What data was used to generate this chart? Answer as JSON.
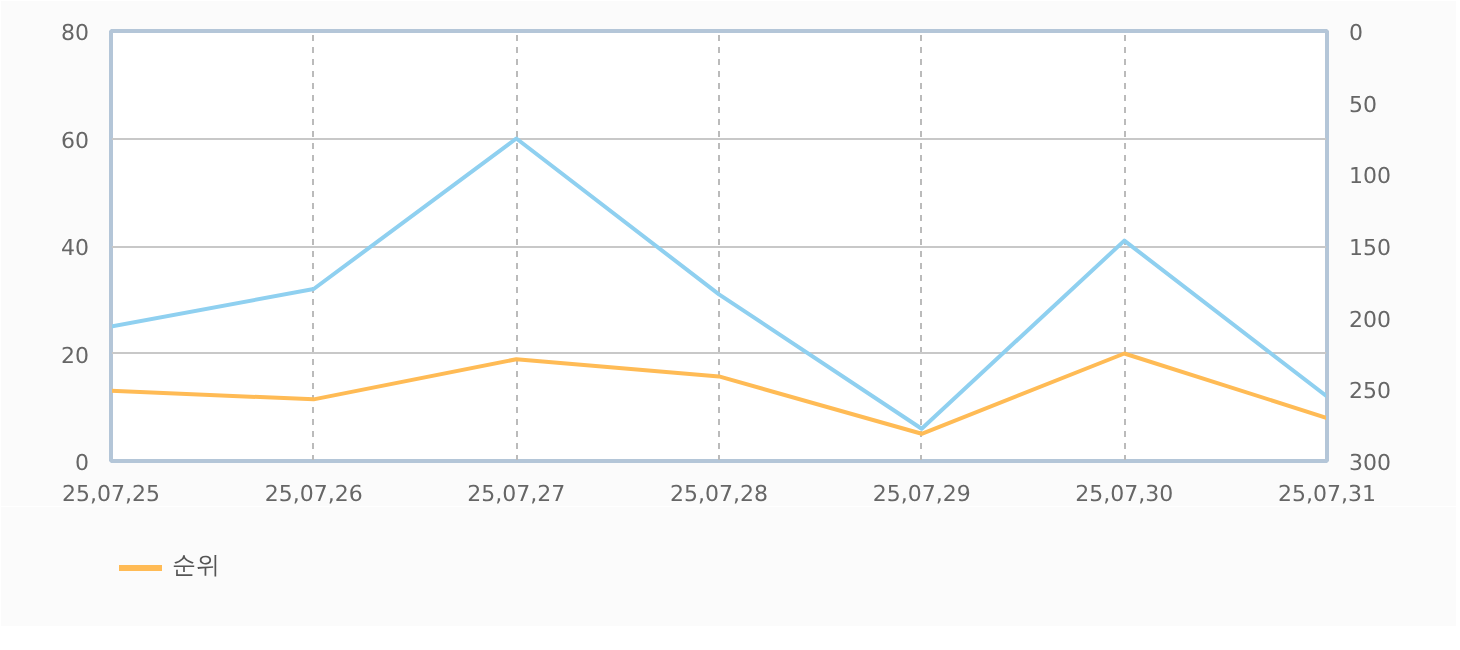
{
  "chart_data": {
    "type": "line",
    "categories": [
      "25,07,25",
      "25,07,26",
      "25,07,27",
      "25,07,28",
      "25,07,29",
      "25,07,30",
      "25,07,31"
    ],
    "series": [
      {
        "color": "#8fd0f0",
        "values": [
          25,
          32,
          60,
          31,
          6,
          41,
          12
        ]
      },
      {
        "name": "순위",
        "color": "#ffbb55",
        "axis": "y2",
        "values": [
          251,
          257,
          229,
          241,
          281,
          225,
          270
        ]
      }
    ],
    "ylim": [
      0,
      80
    ],
    "yticks": [
      0,
      20,
      40,
      60,
      80
    ],
    "y2lim": [
      300,
      0
    ],
    "y2ticks": [
      0,
      50,
      100,
      150,
      200,
      250,
      300
    ],
    "grid": true,
    "legend": "bottom left",
    "marker": "none",
    "line_style": "solid"
  }
}
